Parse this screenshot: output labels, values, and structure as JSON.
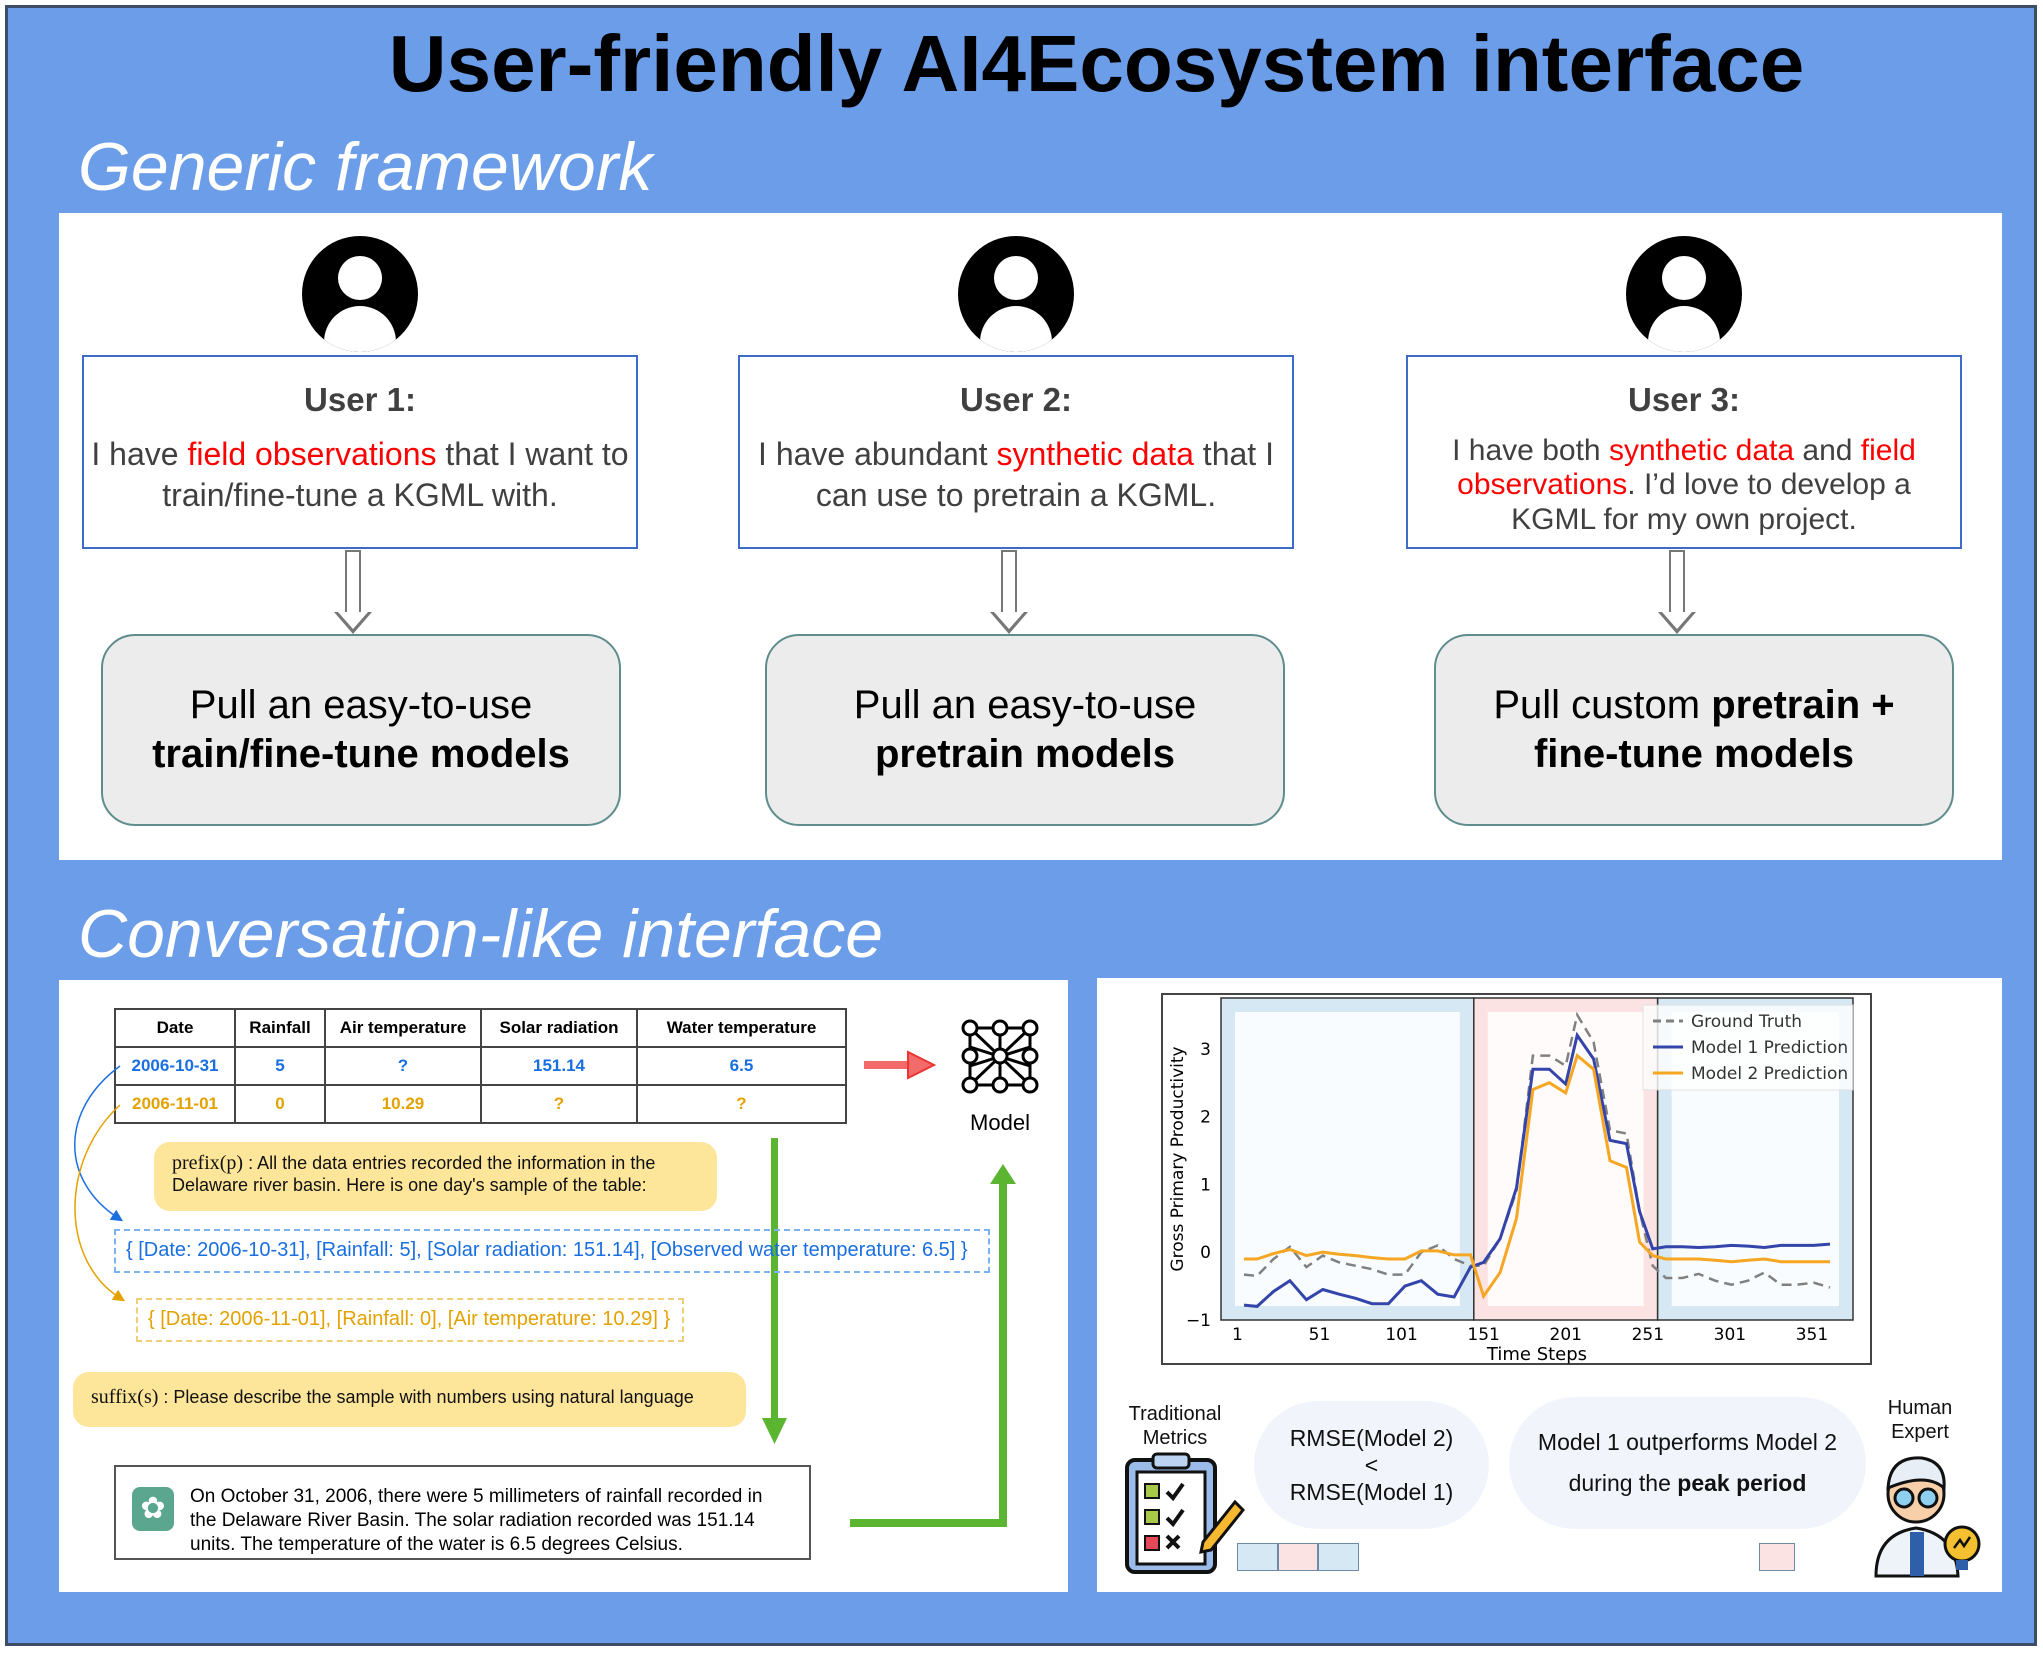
{
  "title": "User-friendly AI4Ecosystem interface",
  "generic": {
    "heading": "Generic framework",
    "users": [
      {
        "label": "User 1:",
        "parts": [
          {
            "t": "I have ",
            "hl": false
          },
          {
            "t": "field observations",
            "hl": true
          },
          {
            "t": " that I want to train/fine-tune a KGML with.",
            "hl": false
          }
        ],
        "model_pre": "Pull an easy-to-use",
        "model_bold": "train/fine-tune models",
        "model_post": ""
      },
      {
        "label": "User 2:",
        "parts": [
          {
            "t": "I have abundant ",
            "hl": false
          },
          {
            "t": "synthetic data",
            "hl": true
          },
          {
            "t": " that I can use to pretrain a KGML.",
            "hl": false
          }
        ],
        "model_pre": "Pull an easy-to-use",
        "model_bold": "pretrain models",
        "model_post": ""
      },
      {
        "label": "User 3:",
        "parts": [
          {
            "t": "I have both ",
            "hl": false
          },
          {
            "t": "synthetic data",
            "hl": true
          },
          {
            "t": " and ",
            "hl": false
          },
          {
            "t": "field observations",
            "hl": true
          },
          {
            "t": ". I’d love to develop a KGML for my own project.",
            "hl": false
          }
        ],
        "model_pre": "Pull custom ",
        "model_bold": "pretrain + fine-tune models",
        "model_post": ""
      }
    ],
    "highlight_color": "#ff0000"
  },
  "conversation": {
    "heading": "Conversation-like interface",
    "table": {
      "headers": [
        "Date",
        "Rainfall",
        "Air temperature",
        "Solar radiation",
        "Water temperature"
      ],
      "rows": [
        [
          "2006-10-31",
          "5",
          "?",
          "151.14",
          "6.5"
        ],
        [
          "2006-11-01",
          "0",
          "10.29",
          "?",
          "?"
        ]
      ]
    },
    "model_label": "Model",
    "prefix_label": "prefix(p)",
    "prefix_text": ": All the data entries recorded the information in the Delaware river basin. Here is one day's sample of the table:",
    "sample1": "{  [Date: 2006-10-31], [Rainfall: 5], [Solar radiation: 151.14], [Observed water temperature: 6.5]  }",
    "sample2": "{  [Date: 2006-11-01], [Rainfall: 0], [Air temperature: 10.29]  }",
    "suffix_label": "suffix(s)",
    "suffix_text": ": Please describe the sample with numbers using natural language",
    "response": "On October 31, 2006, there were 5 millimeters of rainfall recorded in the Delaware River Basin. The solar radiation recorded was 151.14 units. The temperature of the water is 6.5 degrees Celsius.",
    "colors": {
      "blue": "#1a6fe0",
      "orange": "#e3a200",
      "green": "#5cb531"
    }
  },
  "evaluation": {
    "traditional_label": "Traditional Metrics",
    "rmse_line1": "RMSE(Model 2)",
    "rmse_op": "<",
    "rmse_line2": "RMSE(Model 1)",
    "expert_pre": "Model 1 outperforms Model 2",
    "expert_mid": "during the ",
    "expert_bold": "peak period",
    "expert_label": "Human Expert"
  },
  "chart_data": {
    "type": "line",
    "xlabel": "Time Steps",
    "ylabel": "Gross Primary Productivity",
    "xticks": [
      1,
      51,
      101,
      151,
      201,
      251,
      301,
      351
    ],
    "yticks": [
      -1,
      0,
      1,
      2,
      3
    ],
    "xlim": [
      -9,
      376
    ],
    "ylim": [
      -1,
      3.75
    ],
    "legend": "top-right",
    "regions": [
      {
        "from": -9,
        "to": 145,
        "color": "#d6e8f4"
      },
      {
        "from": 145,
        "to": 257,
        "color": "#fbe3e3"
      },
      {
        "from": 257,
        "to": 376,
        "color": "#d6e8f4"
      }
    ],
    "x": [
      5,
      13,
      23,
      33,
      43,
      53,
      63,
      73,
      83,
      93,
      103,
      113,
      123,
      133,
      143,
      151,
      161,
      171,
      181,
      191,
      201,
      208,
      218,
      228,
      238,
      246,
      254,
      262,
      272,
      282,
      292,
      302,
      312,
      322,
      332,
      342,
      352,
      362
    ],
    "series": [
      {
        "name": "Ground Truth",
        "color": "#808080",
        "dash": true,
        "values": [
          -0.33,
          -0.35,
          -0.1,
          0.08,
          -0.22,
          -0.05,
          -0.15,
          -0.2,
          -0.25,
          -0.33,
          -0.33,
          0,
          0.1,
          -0.1,
          -0.2,
          -0.2,
          0.2,
          0.9,
          2.9,
          2.9,
          2.75,
          3.5,
          3.1,
          1.8,
          1.75,
          0.6,
          -0.2,
          -0.38,
          -0.38,
          -0.32,
          -0.42,
          -0.48,
          -0.42,
          -0.3,
          -0.48,
          -0.48,
          -0.45,
          -0.52
        ]
      },
      {
        "name": "Model 1 Prediction",
        "color": "#3344aa",
        "dash": false,
        "values": [
          -0.78,
          -0.8,
          -0.58,
          -0.42,
          -0.7,
          -0.55,
          -0.62,
          -0.68,
          -0.76,
          -0.76,
          -0.5,
          -0.42,
          -0.62,
          -0.66,
          -0.22,
          -0.15,
          0.2,
          0.95,
          2.7,
          2.7,
          2.48,
          3.2,
          2.85,
          1.65,
          1.6,
          0.6,
          0.05,
          0.08,
          0.08,
          0.07,
          0.08,
          0.1,
          0.09,
          0.07,
          0.1,
          0.1,
          0.1,
          0.12
        ]
      },
      {
        "name": "Model 2 Prediction",
        "color": "#f5a623",
        "dash": false,
        "values": [
          -0.1,
          -0.1,
          -0.02,
          0.04,
          -0.05,
          0,
          -0.03,
          -0.05,
          -0.08,
          -0.1,
          -0.1,
          0.02,
          0.02,
          -0.04,
          -0.04,
          -0.65,
          -0.3,
          0.5,
          2.4,
          2.5,
          2.35,
          2.9,
          2.7,
          1.35,
          1.25,
          0.15,
          -0.05,
          -0.1,
          -0.1,
          -0.1,
          -0.12,
          -0.14,
          -0.12,
          -0.1,
          -0.14,
          -0.14,
          -0.14,
          -0.14
        ]
      }
    ]
  }
}
